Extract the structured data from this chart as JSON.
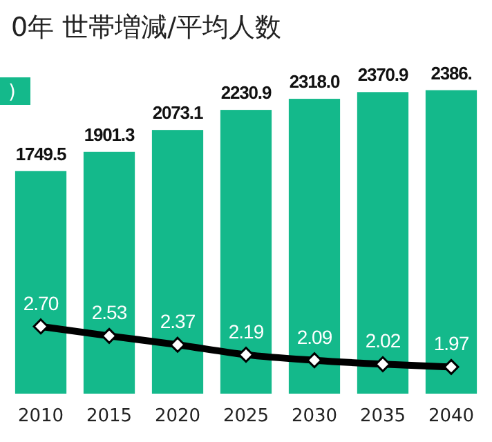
{
  "chart_data": {
    "type": "bar",
    "title": "0年  世帯増減/平均人数",
    "annotations": [
      ")"
    ],
    "categories": [
      "2010",
      "2015",
      "2020",
      "2025",
      "2030",
      "2035",
      "2040"
    ],
    "tick_labels": "x",
    "series": [
      {
        "color": "#14b98b",
        "values": [
          1749.5,
          1901.3,
          2073.1,
          2230.9,
          2318.0,
          2370.9,
          2386
        ],
        "value_labels": [
          "1749.5",
          "1901.3",
          "2073.1",
          "2230.9",
          "2318.0",
          "2370.9",
          "2386."
        ]
      },
      {
        "type": "line",
        "axis": "y2",
        "color": "#000000",
        "marker": "diamond",
        "line_style": "solid",
        "values": [
          2.7,
          2.53,
          2.37,
          2.19,
          2.09,
          2.02,
          1.97
        ],
        "value_labels": [
          "2.70",
          "2.53",
          "2.37",
          "2.19",
          "2.09",
          "2.02",
          "1.97"
        ]
      }
    ]
  }
}
